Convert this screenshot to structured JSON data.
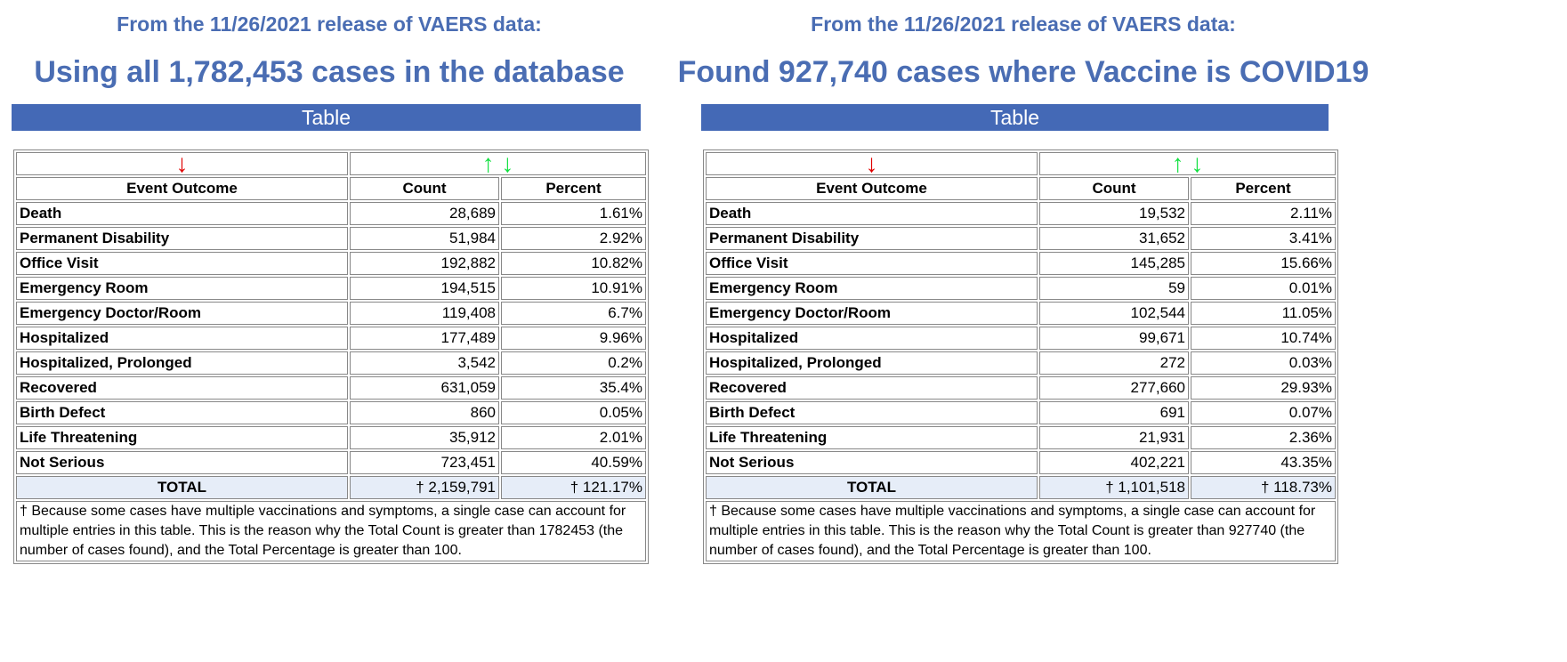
{
  "panels": [
    {
      "release_line": "From the 11/26/2021 release of VAERS data:",
      "headline": "Using all 1,782,453 cases in the database",
      "bar_label": "Table",
      "headers": [
        "Event Outcome",
        "Count",
        "Percent"
      ],
      "rows": [
        [
          "Death",
          "28,689",
          "1.61%"
        ],
        [
          "Permanent Disability",
          "51,984",
          "2.92%"
        ],
        [
          "Office Visit",
          "192,882",
          "10.82%"
        ],
        [
          "Emergency Room",
          "194,515",
          "10.91%"
        ],
        [
          "Emergency Doctor/Room",
          "119,408",
          "6.7%"
        ],
        [
          "Hospitalized",
          "177,489",
          "9.96%"
        ],
        [
          "Hospitalized, Prolonged",
          "3,542",
          "0.2%"
        ],
        [
          "Recovered",
          "631,059",
          "35.4%"
        ],
        [
          "Birth Defect",
          "860",
          "0.05%"
        ],
        [
          "Life Threatening",
          "35,912",
          "2.01%"
        ],
        [
          "Not Serious",
          "723,451",
          "40.59%"
        ]
      ],
      "total": [
        "TOTAL",
        "† 2,159,791",
        "† 121.17%"
      ],
      "note": "† Because some cases have multiple vaccinations and symptoms, a single case can account for multiple entries in this table. This is the reason why the Total Count is greater than 1782453 (the number of cases found), and the Total Percentage is greater than 100."
    },
    {
      "release_line": "From the 11/26/2021 release of VAERS data:",
      "headline": "Found 927,740 cases where Vaccine is COVID19",
      "bar_label": "Table",
      "headers": [
        "Event Outcome",
        "Count",
        "Percent"
      ],
      "rows": [
        [
          "Death",
          "19,532",
          "2.11%"
        ],
        [
          "Permanent Disability",
          "31,652",
          "3.41%"
        ],
        [
          "Office Visit",
          "145,285",
          "15.66%"
        ],
        [
          "Emergency Room",
          "59",
          "0.01%"
        ],
        [
          "Emergency Doctor/Room",
          "102,544",
          "11.05%"
        ],
        [
          "Hospitalized",
          "99,671",
          "10.74%"
        ],
        [
          "Hospitalized, Prolonged",
          "272",
          "0.03%"
        ],
        [
          "Recovered",
          "277,660",
          "29.93%"
        ],
        [
          "Birth Defect",
          "691",
          "0.07%"
        ],
        [
          "Life Threatening",
          "21,931",
          "2.36%"
        ],
        [
          "Not Serious",
          "402,221",
          "43.35%"
        ]
      ],
      "total": [
        "TOTAL",
        "† 1,101,518",
        "† 118.73%"
      ],
      "note": "† Because some cases have multiple vaccinations and symptoms, a single case can account for multiple entries in this table. This is the reason why the Total Count is greater than 927740 (the number of cases found), and the Total Percentage is greater than 100."
    }
  ],
  "icons": {
    "sort_desc": "arrow-down-red",
    "sort_both": "arrow-up-down-green"
  },
  "colors": {
    "title": "#4a6db3",
    "bar": "#4469b6",
    "total_row": "#e6edf8",
    "arrow_red": "#e00000",
    "arrow_green": "#11e040"
  }
}
